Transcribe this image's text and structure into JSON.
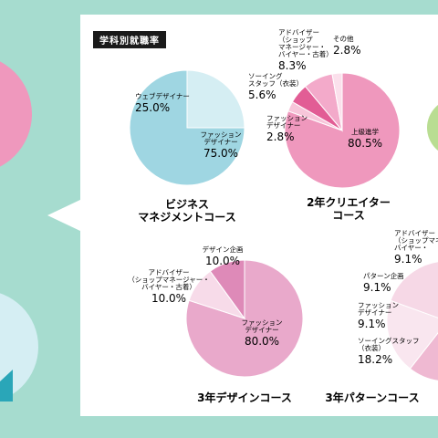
{
  "header": {
    "badge": "学科別就職率"
  },
  "chart_data": [
    {
      "type": "pie",
      "title_lines": [
        "ビジネス",
        "マネジメントコース"
      ],
      "slices": [
        {
          "label_lines": [
            "ファッション",
            "デザイナー"
          ],
          "value": 75.0,
          "display": "75.0%",
          "color": "#9fd6e2"
        },
        {
          "label_lines": [
            "ウェブデザイナー"
          ],
          "value": 25.0,
          "display": "25.0%",
          "color": "#d5eef3"
        }
      ]
    },
    {
      "type": "pie",
      "title_lines": [
        "2年クリエイター",
        "コース"
      ],
      "slices": [
        {
          "label_lines": [
            "上級進学"
          ],
          "value": 80.5,
          "display": "80.5%",
          "color": "#ef98bd"
        },
        {
          "label_lines": [
            "ファッション",
            "デザイナー"
          ],
          "value": 2.8,
          "display": "2.8%",
          "color": "#f7c6da"
        },
        {
          "label_lines": [
            "ソーイング",
            "スタッフ（衣装）"
          ],
          "value": 5.6,
          "display": "5.6%",
          "color": "#e25d95"
        },
        {
          "label_lines": [
            "アドバイザー",
            "（ショップ",
            "マネージャー・",
            "バイヤー・古着）"
          ],
          "value": 8.3,
          "display": "8.3%",
          "color": "#f3aaca"
        },
        {
          "label_lines": [
            "その他"
          ],
          "value": 2.8,
          "display": "2.8%",
          "color": "#fbe0ec"
        }
      ]
    },
    {
      "type": "pie",
      "title_lines": [
        "3年デザインコース"
      ],
      "slices": [
        {
          "label_lines": [
            "ファッション",
            "デザイナー"
          ],
          "value": 80.0,
          "display": "80.0%",
          "color": "#e9a9cb"
        },
        {
          "label_lines": [
            "アドバイザー",
            "（ショップマネージャー・",
            "バイヤー・古着）"
          ],
          "value": 10.0,
          "display": "10.0%",
          "color": "#f7dbe9"
        },
        {
          "label_lines": [
            "デザイン企画"
          ],
          "value": 10.0,
          "display": "10.0%",
          "color": "#de8ab8"
        }
      ]
    },
    {
      "type": "pie",
      "title_lines": [
        "3年パターンコース"
      ],
      "slices": [
        {
          "label_lines": [
            "ソーイングスタッフ",
            "（衣装）"
          ],
          "value": 18.2,
          "display": "18.2%",
          "color": "#f6d8e6"
        },
        {
          "label_lines": [
            "ファッション",
            "デザイナー"
          ],
          "value": 9.1,
          "display": "9.1%",
          "color": "#e58cb7"
        },
        {
          "label_lines": [
            "パターン企画"
          ],
          "value": 9.1,
          "display": "9.1%",
          "color": "#efb9d2"
        },
        {
          "label_lines": [
            "アドバイザー",
            "（ショップマネー",
            "バイヤー・"
          ],
          "value": 9.1,
          "display": "9.1%",
          "color": "#f9e6ef"
        }
      ]
    }
  ]
}
